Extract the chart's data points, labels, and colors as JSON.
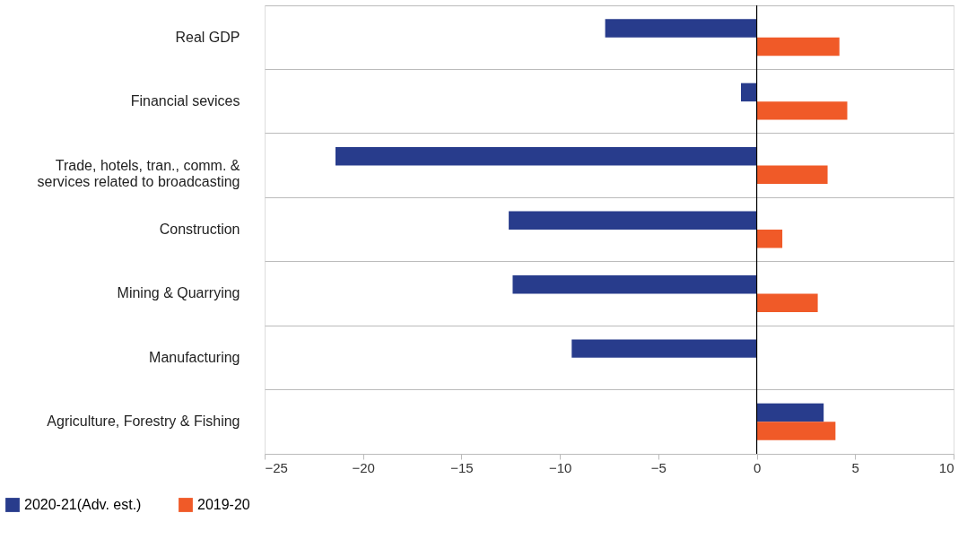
{
  "chart_data": {
    "type": "bar",
    "orientation": "horizontal",
    "categories": [
      "Real GDP",
      "Financial sevices",
      "Trade, hotels, tran., comm. &\nservices related to broadcasting",
      "Construction",
      "Mining & Quarrying",
      "Manufacturing",
      "Agriculture, Forestry & Fishing"
    ],
    "series": [
      {
        "name": "2020-21(Adv. est.)",
        "color": "#283c8c",
        "values": [
          -7.7,
          -0.8,
          -21.4,
          -12.6,
          -12.4,
          -9.4,
          3.4
        ]
      },
      {
        "name": "2019-20",
        "color": "#f05a28",
        "values": [
          4.2,
          4.6,
          3.6,
          1.3,
          3.1,
          0.0,
          4.0
        ]
      }
    ],
    "xlim": [
      -25,
      10
    ],
    "xticks": [
      -25,
      -20,
      -15,
      -10,
      -5,
      0,
      5,
      10
    ],
    "ref_lines": [
      {
        "axis": "x",
        "value": 0,
        "color": "#000000"
      }
    ],
    "grid": "y",
    "legend": "bottom"
  }
}
